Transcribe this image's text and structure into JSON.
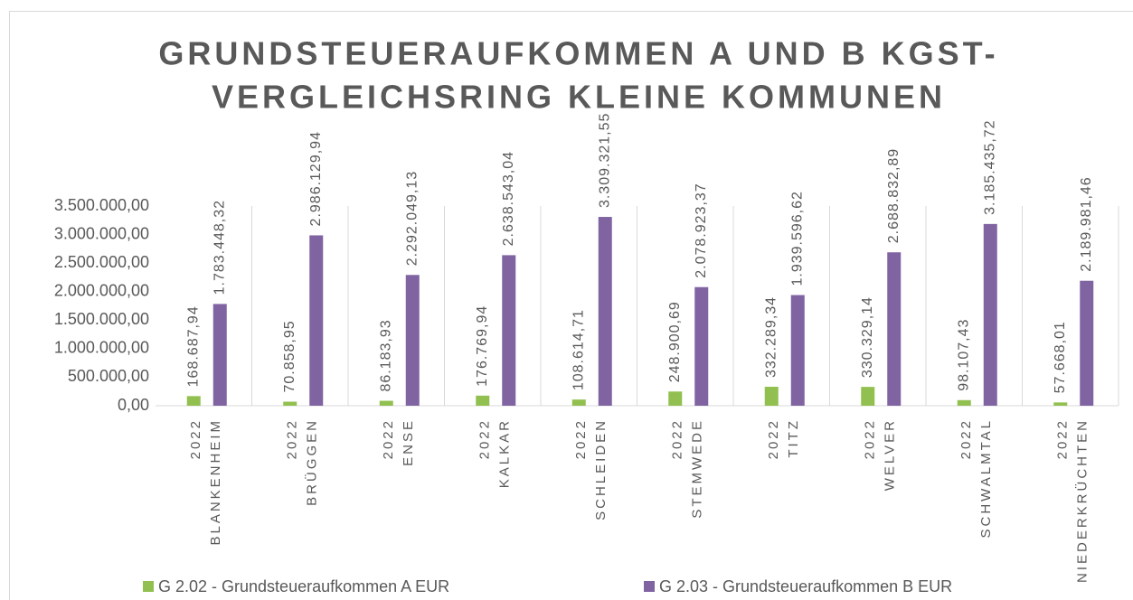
{
  "chart_data": {
    "type": "bar",
    "title": [
      "GRUNDSTEUERAUFKOMMEN A UND B KGST-",
      "VERGLEICHSRING KLEINE KOMMUNEN"
    ],
    "categories": [
      [
        "2022",
        "BLANKENHEIM"
      ],
      [
        "2022",
        "BRÜGGEN"
      ],
      [
        "2022",
        "ENSE"
      ],
      [
        "2022",
        "KALKAR"
      ],
      [
        "2022",
        "SCHLEIDEN"
      ],
      [
        "2022",
        "STEMWEDE"
      ],
      [
        "2022",
        "TITZ"
      ],
      [
        "2022",
        "WELVER"
      ],
      [
        "2022",
        "SCHWALMTAL"
      ],
      [
        "2022",
        "NIEDERKRÜCHTEN"
      ]
    ],
    "series": [
      {
        "name": "G 2.02 - Grundsteueraufkommen A EUR",
        "color": "#92c050",
        "values": [
          168687.94,
          70858.95,
          86183.93,
          176769.94,
          108614.71,
          248900.69,
          332289.34,
          330329.14,
          98107.43,
          57668.01
        ],
        "value_labels": [
          "168.687,94",
          "70.858,95",
          "86.183,93",
          "176.769,94",
          "108.614,71",
          "248.900,69",
          "332.289,34",
          "330.329,14",
          "98.107,43",
          "57.668,01"
        ]
      },
      {
        "name": "G 2.03 - Grundsteueraufkommen B EUR",
        "color": "#8064a2",
        "values": [
          1783448.32,
          2986129.94,
          2292049.13,
          2638543.04,
          3309321.55,
          2078923.37,
          1939596.62,
          2688832.89,
          3185435.72,
          2189981.46
        ],
        "value_labels": [
          "1.783.448,32",
          "2.986.129,94",
          "2.292.049,13",
          "2.638.543,04",
          "3.309.321,55",
          "2.078.923,37",
          "1.939.596,62",
          "2.688.832,89",
          "3.185.435,72",
          "2.189.981,46"
        ]
      }
    ],
    "ylim": [
      0,
      3500000
    ],
    "yticks": [
      {
        "value": 0,
        "label": "0,00"
      },
      {
        "value": 500000,
        "label": "500.000,00"
      },
      {
        "value": 1000000,
        "label": "1.000.000,00"
      },
      {
        "value": 1500000,
        "label": "1.500.000,00"
      },
      {
        "value": 2000000,
        "label": "2.000.000,00"
      },
      {
        "value": 2500000,
        "label": "2.500.000,00"
      },
      {
        "value": 3000000,
        "label": "3.000.000,00"
      },
      {
        "value": 3500000,
        "label": "3.500.000,00"
      }
    ],
    "legend": "bottom"
  }
}
